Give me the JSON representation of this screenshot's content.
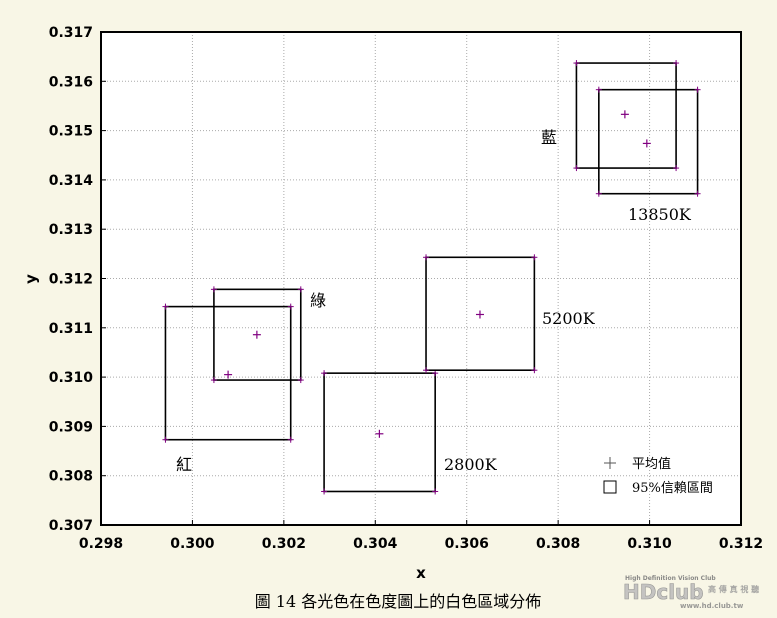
{
  "caption": "圖 14  各光色在色度圖上的白色區域分佈",
  "watermark": {
    "top": "High Definition Vision Club",
    "logo": "HDclub",
    "cn": "高 傳 真 視 聽",
    "url": "www.hd.club.tw"
  },
  "chart_data": {
    "type": "scatter",
    "xlabel": "x",
    "ylabel": "y",
    "xlim": [
      0.298,
      0.312
    ],
    "ylim": [
      0.307,
      0.317
    ],
    "xticks": [
      "0.298",
      "0.300",
      "0.302",
      "0.304",
      "0.306",
      "0.308",
      "0.310",
      "0.312"
    ],
    "yticks": [
      "0.307",
      "0.308",
      "0.309",
      "0.310",
      "0.311",
      "0.312",
      "0.313",
      "0.314",
      "0.315",
      "0.316",
      "0.317"
    ],
    "grid": true,
    "legend_position": "bottom-right",
    "legend": {
      "mean": "平均值",
      "ci": "95%信賴區間"
    },
    "series": [
      {
        "name": "紅",
        "mean": [
          0.30078,
          0.31005
        ],
        "ci_x": [
          0.29941,
          0.30215
        ],
        "ci_y": [
          0.30873,
          0.31143
        ]
      },
      {
        "name": "綠",
        "mean": [
          0.30141,
          0.31086
        ],
        "ci_x": [
          0.30047,
          0.30237
        ],
        "ci_y": [
          0.30994,
          0.31178
        ]
      },
      {
        "name": "2800K",
        "mean": [
          0.30409,
          0.30885
        ],
        "ci_x": [
          0.30288,
          0.30531
        ],
        "ci_y": [
          0.30768,
          0.31008
        ]
      },
      {
        "name": "5200K",
        "mean": [
          0.30629,
          0.31127
        ],
        "ci_x": [
          0.30511,
          0.30748
        ],
        "ci_y": [
          0.31014,
          0.31243
        ]
      },
      {
        "name": "藍",
        "mean": [
          0.30946,
          0.31533
        ],
        "ci_x": [
          0.3084,
          0.31058
        ],
        "ci_y": [
          0.31424,
          0.31637
        ]
      },
      {
        "name": "13850K",
        "mean": [
          0.30994,
          0.31474
        ],
        "ci_x": [
          0.30889,
          0.31105
        ],
        "ci_y": [
          0.31372,
          0.31583
        ]
      }
    ],
    "annotations": [
      "紅",
      "綠",
      "2800K",
      "5200K",
      "藍",
      "13850K"
    ]
  }
}
